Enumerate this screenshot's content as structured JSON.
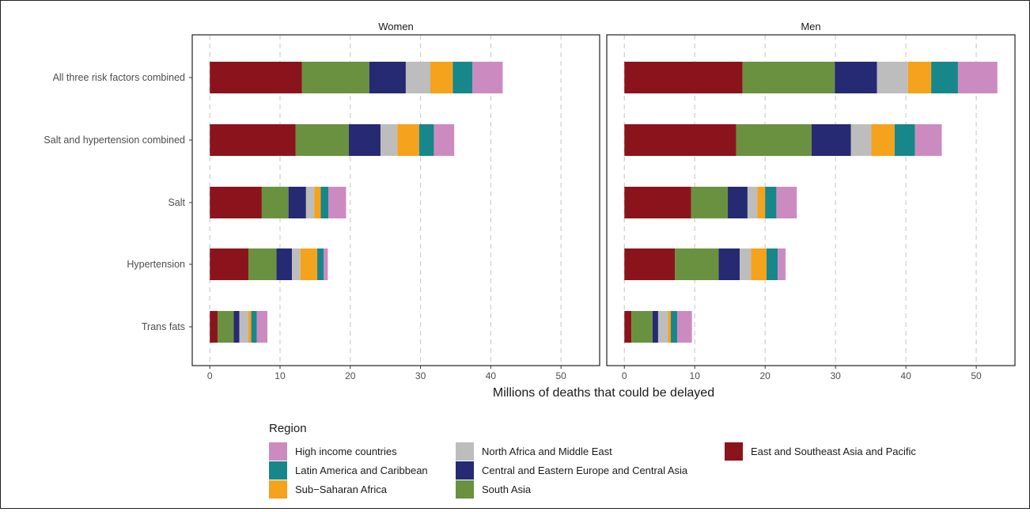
{
  "chart_data": {
    "type": "bar",
    "orientation": "horizontal",
    "stacked": true,
    "xlabel": "Millions of deaths that could be delayed",
    "xlim": [
      -2.5,
      55.5
    ],
    "xticks": [
      0,
      10,
      20,
      30,
      40,
      50
    ],
    "grid": "vertical dashed",
    "legend_position": "bottom",
    "legend_title": "Region",
    "categories": [
      "All three risk factors combined",
      "Salt and hypertension combined",
      "Salt",
      "Hypertension",
      "Trans fats"
    ],
    "stack_order": [
      "East and Southeast Asia and Pacific",
      "South Asia",
      "Central and Eastern Europe and Central Asia",
      "North Africa and Middle East",
      "Sub-Saharan Africa",
      "Latin America and Caribbean",
      "High income countries"
    ],
    "colors": {
      "High income countries": "#cc8bc0",
      "Latin America and Caribbean": "#17878c",
      "Sub-Saharan Africa": "#f5a21c",
      "North Africa and Middle East": "#bdbdbd",
      "Central and Eastern Europe and Central Asia": "#262a72",
      "South Asia": "#6a913f",
      "East and Southeast Asia and Pacific": "#8b141c"
    },
    "panels": [
      {
        "label": "Women",
        "series": [
          {
            "name": "East and Southeast Asia and Pacific",
            "values": [
              13.1,
              12.2,
              7.4,
              5.5,
              1.1
            ]
          },
          {
            "name": "South Asia",
            "values": [
              9.6,
              7.6,
              3.8,
              4.0,
              2.3
            ]
          },
          {
            "name": "Central and Eastern Europe and Central Asia",
            "values": [
              5.2,
              4.5,
              2.5,
              2.2,
              0.8
            ]
          },
          {
            "name": "North Africa and Middle East",
            "values": [
              3.5,
              2.4,
              1.2,
              1.2,
              1.3
            ]
          },
          {
            "name": "Sub-Saharan Africa",
            "values": [
              3.2,
              3.1,
              0.9,
              2.4,
              0.4
            ]
          },
          {
            "name": "Latin America and Caribbean",
            "values": [
              2.8,
              2.1,
              1.1,
              0.9,
              0.8
            ]
          },
          {
            "name": "High income countries",
            "values": [
              4.3,
              2.9,
              2.5,
              0.6,
              1.5
            ]
          }
        ]
      },
      {
        "label": "Men",
        "series": [
          {
            "name": "East and Southeast Asia and Pacific",
            "values": [
              16.8,
              15.9,
              9.5,
              7.2,
              1.0
            ]
          },
          {
            "name": "South Asia",
            "values": [
              13.1,
              10.7,
              5.2,
              6.2,
              3.0
            ]
          },
          {
            "name": "Central and Eastern Europe and Central Asia",
            "values": [
              6.0,
              5.6,
              2.8,
              3.0,
              0.8
            ]
          },
          {
            "name": "North Africa and Middle East",
            "values": [
              4.4,
              2.9,
              1.4,
              1.6,
              1.4
            ]
          },
          {
            "name": "Sub-Saharan Africa",
            "values": [
              3.3,
              3.3,
              1.1,
              2.2,
              0.4
            ]
          },
          {
            "name": "Latin America and Caribbean",
            "values": [
              3.8,
              2.9,
              1.6,
              1.6,
              0.9
            ]
          },
          {
            "name": "High income countries",
            "values": [
              5.6,
              3.8,
              2.9,
              1.1,
              2.1
            ]
          }
        ]
      }
    ],
    "legend": [
      "High income countries",
      "Latin America and Caribbean",
      "Sub−Saharan Africa",
      "North Africa and Middle East",
      "Central and Eastern Europe and Central Asia",
      "South Asia",
      "East and Southeast Asia and Pacific"
    ]
  }
}
